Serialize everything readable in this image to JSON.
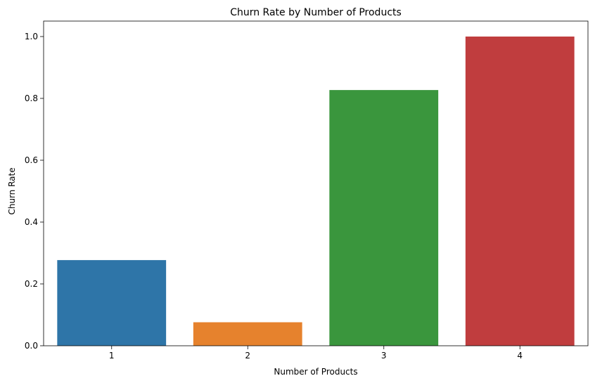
{
  "chart_data": {
    "type": "bar",
    "title": "Churn Rate by Number of Products",
    "xlabel": "Number of Products",
    "ylabel": "Churn Rate",
    "categories": [
      "1",
      "2",
      "3",
      "4"
    ],
    "values": [
      0.277,
      0.076,
      0.827,
      1.0
    ],
    "colors": [
      "#2e75a8",
      "#e6822d",
      "#3a963d",
      "#c03d3e"
    ],
    "ylim": [
      0,
      1.05
    ],
    "yticks": [
      0.0,
      0.2,
      0.4,
      0.6,
      0.8,
      1.0
    ],
    "ytick_labels": [
      "0.0",
      "0.2",
      "0.4",
      "0.6",
      "0.8",
      "1.0"
    ],
    "grid": false,
    "legend": "none"
  }
}
